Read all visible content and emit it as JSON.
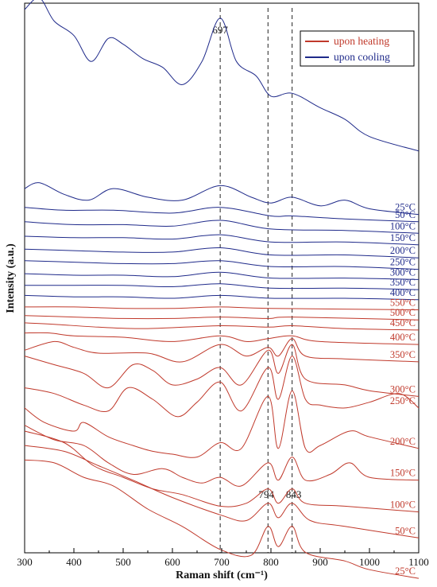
{
  "chart_data": {
    "type": "line",
    "xlabel": "Raman shift (cm⁻¹)",
    "ylabel": "Intensity (a.u.)",
    "xlim": [
      300,
      1100
    ],
    "x_ticks": [
      "300",
      "400",
      "500",
      "600",
      "700",
      "800",
      "900",
      "1000",
      "1100"
    ],
    "grid": false,
    "legend": {
      "position": "top-right",
      "entries": [
        {
          "label": "upon heating",
          "color": "#c0392b"
        },
        {
          "label": "upon cooling",
          "color": "#1f2a8a"
        }
      ]
    },
    "reference_lines": [
      {
        "x": 697,
        "label": "697"
      },
      {
        "x": 794,
        "label": "794"
      },
      {
        "x": 843,
        "label": "843"
      }
    ],
    "series": [
      {
        "name": "unlabeled",
        "group": "cooling",
        "offset": 10.0,
        "points": [
          [
            300,
            2.6
          ],
          [
            330,
            3.0
          ],
          [
            360,
            2.2
          ],
          [
            400,
            1.7
          ],
          [
            435,
            0.8
          ],
          [
            470,
            1.6
          ],
          [
            500,
            1.4
          ],
          [
            540,
            0.9
          ],
          [
            580,
            0.6
          ],
          [
            620,
            0.0
          ],
          [
            660,
            0.8
          ],
          [
            697,
            2.3
          ],
          [
            730,
            0.8
          ],
          [
            770,
            0.3
          ],
          [
            800,
            -0.4
          ],
          [
            843,
            -0.3
          ],
          [
            900,
            -0.8
          ],
          [
            950,
            -1.2
          ],
          [
            1000,
            -1.8
          ],
          [
            1100,
            -2.3
          ]
        ]
      },
      {
        "name": "25°C",
        "group": "cooling",
        "offset": 6.0,
        "points": [
          [
            300,
            0.4
          ],
          [
            330,
            0.6
          ],
          [
            380,
            0.2
          ],
          [
            430,
            0.0
          ],
          [
            480,
            0.4
          ],
          [
            550,
            0.1
          ],
          [
            620,
            0.0
          ],
          [
            697,
            0.5
          ],
          [
            760,
            0.1
          ],
          [
            800,
            -0.1
          ],
          [
            843,
            0.1
          ],
          [
            900,
            -0.2
          ],
          [
            950,
            0.0
          ],
          [
            1000,
            -0.3
          ],
          [
            1100,
            -0.5
          ]
        ]
      },
      {
        "name": "50°C",
        "group": "cooling",
        "offset": 5.45,
        "points": [
          [
            300,
            0.3
          ],
          [
            380,
            0.2
          ],
          [
            480,
            0.2
          ],
          [
            600,
            0.1
          ],
          [
            697,
            0.3
          ],
          [
            800,
            0.0
          ],
          [
            843,
            0.0
          ],
          [
            950,
            -0.1
          ],
          [
            1100,
            -0.2
          ]
        ]
      },
      {
        "name": "100°C",
        "group": "cooling",
        "offset": 5.0,
        "points": [
          [
            300,
            0.25
          ],
          [
            400,
            0.15
          ],
          [
            500,
            0.15
          ],
          [
            600,
            0.1
          ],
          [
            697,
            0.3
          ],
          [
            800,
            0.0
          ],
          [
            950,
            -0.05
          ],
          [
            1100,
            -0.15
          ]
        ]
      },
      {
        "name": "150°C",
        "group": "cooling",
        "offset": 4.55,
        "points": [
          [
            300,
            0.2
          ],
          [
            400,
            0.15
          ],
          [
            500,
            0.15
          ],
          [
            600,
            0.1
          ],
          [
            697,
            0.25
          ],
          [
            800,
            0.0
          ],
          [
            950,
            0.0
          ],
          [
            1100,
            -0.1
          ]
        ]
      },
      {
        "name": "200°C",
        "group": "cooling",
        "offset": 4.1,
        "points": [
          [
            300,
            0.2
          ],
          [
            400,
            0.15
          ],
          [
            500,
            0.1
          ],
          [
            600,
            0.1
          ],
          [
            697,
            0.25
          ],
          [
            800,
            0.0
          ],
          [
            950,
            0.0
          ],
          [
            1100,
            -0.1
          ]
        ]
      },
      {
        "name": "250°C",
        "group": "cooling",
        "offset": 3.7,
        "points": [
          [
            300,
            0.2
          ],
          [
            400,
            0.15
          ],
          [
            500,
            0.1
          ],
          [
            600,
            0.1
          ],
          [
            697,
            0.2
          ],
          [
            800,
            0.0
          ],
          [
            950,
            0.0
          ],
          [
            1100,
            -0.1
          ]
        ]
      },
      {
        "name": "300°C",
        "group": "cooling",
        "offset": 3.3,
        "points": [
          [
            300,
            0.15
          ],
          [
            400,
            0.1
          ],
          [
            500,
            0.1
          ],
          [
            600,
            0.05
          ],
          [
            697,
            0.2
          ],
          [
            800,
            0.0
          ],
          [
            950,
            0.0
          ],
          [
            1100,
            -0.05
          ]
        ]
      },
      {
        "name": "350°C",
        "group": "cooling",
        "offset": 2.95,
        "points": [
          [
            300,
            0.1
          ],
          [
            400,
            0.1
          ],
          [
            500,
            0.1
          ],
          [
            600,
            0.05
          ],
          [
            697,
            0.15
          ],
          [
            800,
            0.0
          ],
          [
            950,
            0.0
          ],
          [
            1100,
            -0.05
          ]
        ]
      },
      {
        "name": "400°C",
        "group": "cooling",
        "offset": 2.6,
        "points": [
          [
            300,
            0.1
          ],
          [
            400,
            0.05
          ],
          [
            500,
            0.05
          ],
          [
            600,
            0.0
          ],
          [
            697,
            0.1
          ],
          [
            800,
            0.0
          ],
          [
            950,
            0.0
          ],
          [
            1100,
            -0.05
          ]
        ]
      },
      {
        "name": "550°C",
        "group": "heating",
        "offset": 2.25,
        "points": [
          [
            300,
            0.05
          ],
          [
            400,
            0.05
          ],
          [
            500,
            0.0
          ],
          [
            600,
            0.0
          ],
          [
            697,
            0.05
          ],
          [
            800,
            0.0
          ],
          [
            1100,
            -0.05
          ]
        ]
      },
      {
        "name": "500°C",
        "group": "heating",
        "offset": 1.9,
        "points": [
          [
            300,
            0.1
          ],
          [
            400,
            0.05
          ],
          [
            500,
            0.0
          ],
          [
            600,
            0.0
          ],
          [
            697,
            0.05
          ],
          [
            794,
            0.0
          ],
          [
            843,
            0.05
          ],
          [
            1100,
            -0.05
          ]
        ]
      },
      {
        "name": "450°C",
        "group": "heating",
        "offset": 1.55,
        "points": [
          [
            300,
            0.2
          ],
          [
            360,
            0.15
          ],
          [
            450,
            0.05
          ],
          [
            550,
            0.0
          ],
          [
            697,
            0.1
          ],
          [
            794,
            0.05
          ],
          [
            843,
            0.1
          ],
          [
            950,
            0.0
          ],
          [
            1100,
            -0.05
          ]
        ]
      },
      {
        "name": "400°C",
        "group": "heating",
        "offset": 1.1,
        "points": [
          [
            300,
            0.3
          ],
          [
            350,
            0.3
          ],
          [
            400,
            0.2
          ],
          [
            500,
            0.15
          ],
          [
            600,
            0.0
          ],
          [
            697,
            0.2
          ],
          [
            750,
            0.0
          ],
          [
            794,
            0.1
          ],
          [
            843,
            0.2
          ],
          [
            900,
            0.0
          ],
          [
            1100,
            -0.1
          ]
        ]
      },
      {
        "name": "350°C",
        "group": "heating",
        "offset": 0.6,
        "points": [
          [
            300,
            0.2
          ],
          [
            360,
            0.5
          ],
          [
            400,
            0.3
          ],
          [
            450,
            0.1
          ],
          [
            550,
            0.1
          ],
          [
            620,
            -0.2
          ],
          [
            697,
            0.4
          ],
          [
            750,
            0.0
          ],
          [
            794,
            0.3
          ],
          [
            815,
            0.0
          ],
          [
            843,
            0.6
          ],
          [
            870,
            0.0
          ],
          [
            950,
            -0.1
          ],
          [
            1100,
            -0.2
          ]
        ]
      },
      {
        "name": "300°C",
        "group": "heating",
        "offset": 0.0,
        "points": [
          [
            300,
            0.6
          ],
          [
            360,
            0.3
          ],
          [
            420,
            0.0
          ],
          [
            470,
            -0.5
          ],
          [
            520,
            0.3
          ],
          [
            560,
            0.1
          ],
          [
            600,
            -0.4
          ],
          [
            650,
            -0.2
          ],
          [
            697,
            0.2
          ],
          [
            740,
            -0.4
          ],
          [
            794,
            0.8
          ],
          [
            815,
            0.0
          ],
          [
            843,
            1.0
          ],
          [
            870,
            -0.2
          ],
          [
            950,
            -0.4
          ],
          [
            1000,
            -0.6
          ],
          [
            1100,
            -0.8
          ]
        ]
      },
      {
        "name": "250°C",
        "group": "heating",
        "offset": -0.9,
        "points": [
          [
            300,
            0.4
          ],
          [
            360,
            0.2
          ],
          [
            420,
            -0.2
          ],
          [
            470,
            -0.4
          ],
          [
            510,
            0.4
          ],
          [
            560,
            0.0
          ],
          [
            610,
            -0.6
          ],
          [
            650,
            -0.1
          ],
          [
            697,
            0.6
          ],
          [
            740,
            -0.4
          ],
          [
            794,
            1.1
          ],
          [
            815,
            0.0
          ],
          [
            843,
            1.5
          ],
          [
            870,
            0.0
          ],
          [
            900,
            -0.2
          ],
          [
            950,
            -0.3
          ],
          [
            1000,
            -0.1
          ],
          [
            1060,
            0.2
          ],
          [
            1100,
            -0.3
          ]
        ]
      },
      {
        "name": "200°C",
        "group": "heating",
        "offset": -2.0,
        "points": [
          [
            300,
            0.8
          ],
          [
            340,
            0.3
          ],
          [
            400,
            0.0
          ],
          [
            420,
            0.3
          ],
          [
            470,
            -0.2
          ],
          [
            520,
            -0.5
          ],
          [
            560,
            -0.7
          ],
          [
            600,
            -0.8
          ],
          [
            650,
            -0.9
          ],
          [
            697,
            -0.4
          ],
          [
            740,
            -0.6
          ],
          [
            794,
            1.2
          ],
          [
            815,
            -0.6
          ],
          [
            843,
            1.4
          ],
          [
            870,
            -0.6
          ],
          [
            900,
            -0.5
          ],
          [
            960,
            0.0
          ],
          [
            1000,
            -0.2
          ],
          [
            1100,
            -0.6
          ]
        ]
      },
      {
        "name": "150°C",
        "group": "heating",
        "offset": -2.7,
        "points": [
          [
            300,
            0.9
          ],
          [
            360,
            0.4
          ],
          [
            420,
            0.2
          ],
          [
            470,
            -0.4
          ],
          [
            520,
            -0.8
          ],
          [
            580,
            -0.6
          ],
          [
            620,
            -0.9
          ],
          [
            660,
            -1.1
          ],
          [
            697,
            -0.9
          ],
          [
            740,
            -1.2
          ],
          [
            794,
            -0.4
          ],
          [
            815,
            -1.0
          ],
          [
            843,
            -0.2
          ],
          [
            870,
            -1.0
          ],
          [
            920,
            -0.8
          ],
          [
            960,
            -0.4
          ],
          [
            1000,
            -0.9
          ],
          [
            1100,
            -1.0
          ]
        ]
      },
      {
        "name": "100°C",
        "group": "heating",
        "offset": -3.2,
        "points": [
          [
            300,
            1.2
          ],
          [
            380,
            0.8
          ],
          [
            440,
            0.0
          ],
          [
            500,
            -0.4
          ],
          [
            560,
            -0.8
          ],
          [
            620,
            -1.0
          ],
          [
            697,
            -1.4
          ],
          [
            750,
            -1.3
          ],
          [
            794,
            -0.8
          ],
          [
            815,
            -1.3
          ],
          [
            843,
            -0.8
          ],
          [
            870,
            -1.3
          ],
          [
            950,
            -1.4
          ],
          [
            1100,
            -1.6
          ]
        ]
      },
      {
        "name": "50°C",
        "group": "heating",
        "offset": -3.7,
        "points": [
          [
            300,
            1.2
          ],
          [
            380,
            1.0
          ],
          [
            450,
            0.5
          ],
          [
            520,
            0.0
          ],
          [
            600,
            -0.6
          ],
          [
            697,
            -1.2
          ],
          [
            750,
            -1.4
          ],
          [
            794,
            -0.8
          ],
          [
            815,
            -1.3
          ],
          [
            843,
            -0.8
          ],
          [
            880,
            -1.4
          ],
          [
            950,
            -1.6
          ],
          [
            1100,
            -2.0
          ]
        ]
      },
      {
        "name": "25°C",
        "group": "heating",
        "offset": -4.2,
        "points": [
          [
            300,
            1.2
          ],
          [
            360,
            1.1
          ],
          [
            420,
            0.6
          ],
          [
            480,
            0.3
          ],
          [
            550,
            -0.5
          ],
          [
            620,
            -1.1
          ],
          [
            697,
            -1.9
          ],
          [
            760,
            -2.1
          ],
          [
            794,
            -1.1
          ],
          [
            815,
            -1.8
          ],
          [
            843,
            -1.1
          ],
          [
            870,
            -2.0
          ],
          [
            950,
            -2.3
          ],
          [
            1000,
            -2.6
          ],
          [
            1100,
            -2.9
          ]
        ]
      }
    ]
  }
}
